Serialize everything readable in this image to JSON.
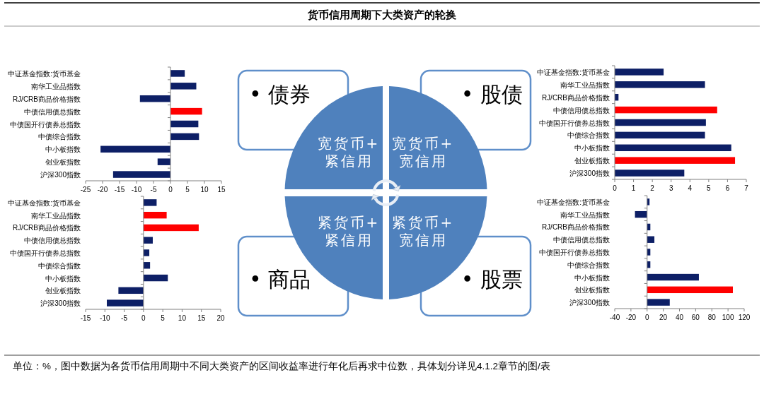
{
  "chart_data": [
    {
      "type": "other",
      "title": "货币信用周期下大类资产的轮换",
      "annotations": [
        "• 债券",
        "• 股债",
        "• 商品",
        "• 股票",
        "宽货币+紧信用",
        "宽货币+宽信用",
        "紧货币+紧信用",
        "紧货币+宽信用",
        "单位：%，图中数据为各货币信用周期中不同大类资产的区间收益率进行年化后再求中位数，具体划分详见4.1.2章节的图/表"
      ]
    },
    {
      "type": "bar",
      "orientation": "horizontal",
      "categories": [
        "中证基金指数:货币基金",
        "南华工业品指数",
        "RJ/CRB商品价格指数",
        "中债信用债总指数",
        "中债国开行债券总指数",
        "中债综合指数",
        "中小板指数",
        "创业板指数",
        "沪深300指数"
      ],
      "values": [
        4.2,
        7.6,
        -9.0,
        9.3,
        8.2,
        8.4,
        -20.6,
        -3.8,
        -16.9
      ],
      "colors": [
        "#0d1f66",
        "#0d1f66",
        "#0d1f66",
        "#ff0000",
        "#0d1f66",
        "#0d1f66",
        "#0d1f66",
        "#0d1f66",
        "#0d1f66"
      ],
      "xlim": [
        -25,
        15
      ],
      "xticks": [
        -25,
        -20,
        -15,
        -10,
        -5,
        0,
        5,
        10,
        15
      ]
    },
    {
      "type": "bar",
      "orientation": "horizontal",
      "categories": [
        "中证基金指数:货币基金",
        "南华工业品指数",
        "RJ/CRB商品价格指数",
        "中债信用债总指数",
        "中债国开行债券总指数",
        "中债综合指数",
        "中小板指数",
        "创业板指数",
        "沪深300指数"
      ],
      "values": [
        2.6,
        4.8,
        0.2,
        5.45,
        4.85,
        4.8,
        6.2,
        6.4,
        3.7
      ],
      "colors": [
        "#0d1f66",
        "#0d1f66",
        "#0d1f66",
        "#ff0000",
        "#0d1f66",
        "#0d1f66",
        "#0d1f66",
        "#ff0000",
        "#0d1f66"
      ],
      "xlim": [
        0,
        7
      ],
      "xticks": [
        0,
        1,
        2,
        3,
        4,
        5,
        6,
        7
      ]
    },
    {
      "type": "bar",
      "orientation": "horizontal",
      "categories": [
        "中证基金指数:货币基金",
        "南华工业品指数",
        "RJ/CRB商品价格指数",
        "中债信用债总指数",
        "中债国开行债券总指数",
        "中债综合指数",
        "中小板指数",
        "创业板指数",
        "沪深300指数"
      ],
      "values": [
        3.4,
        6.0,
        14.3,
        2.4,
        1.5,
        1.7,
        6.3,
        -6.5,
        -9.5
      ],
      "colors": [
        "#0d1f66",
        "#ff0000",
        "#ff0000",
        "#0d1f66",
        "#0d1f66",
        "#0d1f66",
        "#0d1f66",
        "#0d1f66",
        "#0d1f66"
      ],
      "xlim": [
        -15,
        20
      ],
      "xticks": [
        -15,
        -10,
        -5,
        0,
        5,
        10,
        15,
        20
      ]
    },
    {
      "type": "bar",
      "orientation": "horizontal",
      "categories": [
        "中证基金指数:货币基金",
        "南华工业品指数",
        "RJ/CRB商品价格指数",
        "中债信用债总指数",
        "中债国开行债券总指数",
        "中债综合指数",
        "中小板指数",
        "创业板指数",
        "沪深300指数"
      ],
      "values": [
        3,
        -15,
        4,
        9,
        4,
        4,
        64,
        106,
        28
      ],
      "colors": [
        "#0d1f66",
        "#0d1f66",
        "#0d1f66",
        "#0d1f66",
        "#0d1f66",
        "#0d1f66",
        "#0d1f66",
        "#ff0000",
        "#0d1f66"
      ],
      "xlim": [
        -40,
        120
      ],
      "xticks": [
        -40,
        -20,
        0,
        20,
        40,
        60,
        80,
        100,
        120
      ]
    }
  ]
}
